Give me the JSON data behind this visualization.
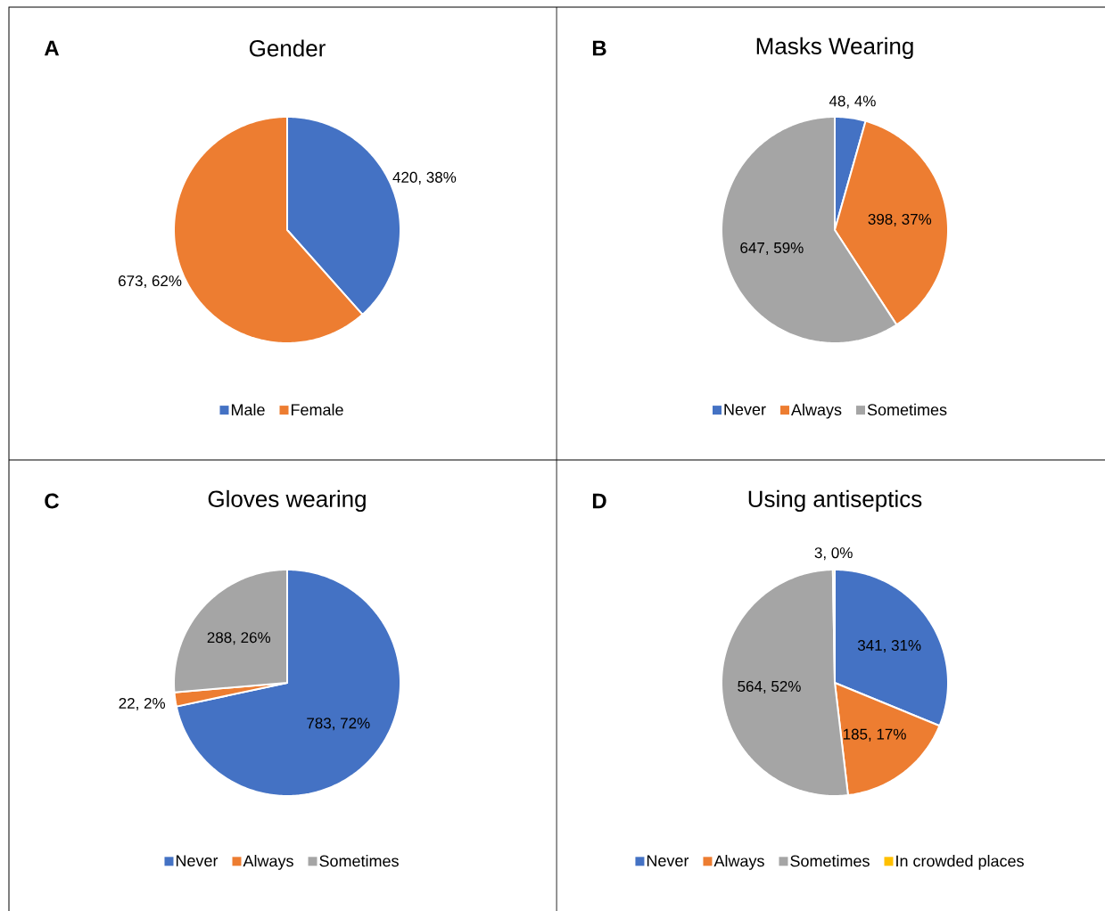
{
  "chart_data": [
    {
      "type": "pie",
      "title": "Gender",
      "annotations": [
        "A"
      ],
      "legend": "bottom",
      "categories": [
        "Male",
        "Female"
      ],
      "values": [
        420,
        673
      ],
      "colors": [
        "#4472c4",
        "#ed7d31"
      ],
      "value_labels": [
        "420, 38%",
        "673, 62%"
      ]
    },
    {
      "type": "pie",
      "title": "Masks Wearing",
      "annotations": [
        "B"
      ],
      "legend": "bottom",
      "categories": [
        "Never",
        "Always",
        "Sometimes"
      ],
      "values": [
        48,
        398,
        647
      ],
      "colors": [
        "#4472c4",
        "#ed7d31",
        "#a5a5a5"
      ],
      "value_labels": [
        "48, 4%",
        "398, 37%",
        "647, 59%"
      ]
    },
    {
      "type": "pie",
      "title": "Gloves wearing",
      "annotations": [
        "C"
      ],
      "legend": "bottom",
      "categories": [
        "Never",
        "Always",
        "Sometimes"
      ],
      "values": [
        783,
        22,
        288
      ],
      "colors": [
        "#4472c4",
        "#ed7d31",
        "#a5a5a5"
      ],
      "value_labels": [
        "783, 72%",
        "22, 2%",
        "288, 26%"
      ]
    },
    {
      "type": "pie",
      "title": "Using antiseptics",
      "annotations": [
        "D"
      ],
      "legend": "bottom",
      "categories": [
        "Never",
        "Always",
        "Sometimes",
        "In crowded places"
      ],
      "values": [
        341,
        185,
        564,
        3
      ],
      "colors": [
        "#4472c4",
        "#ed7d31",
        "#a5a5a5",
        "#ffc000"
      ],
      "value_labels": [
        "341, 31%",
        "185, 17%",
        "564, 52%",
        "3, 0%"
      ]
    }
  ]
}
